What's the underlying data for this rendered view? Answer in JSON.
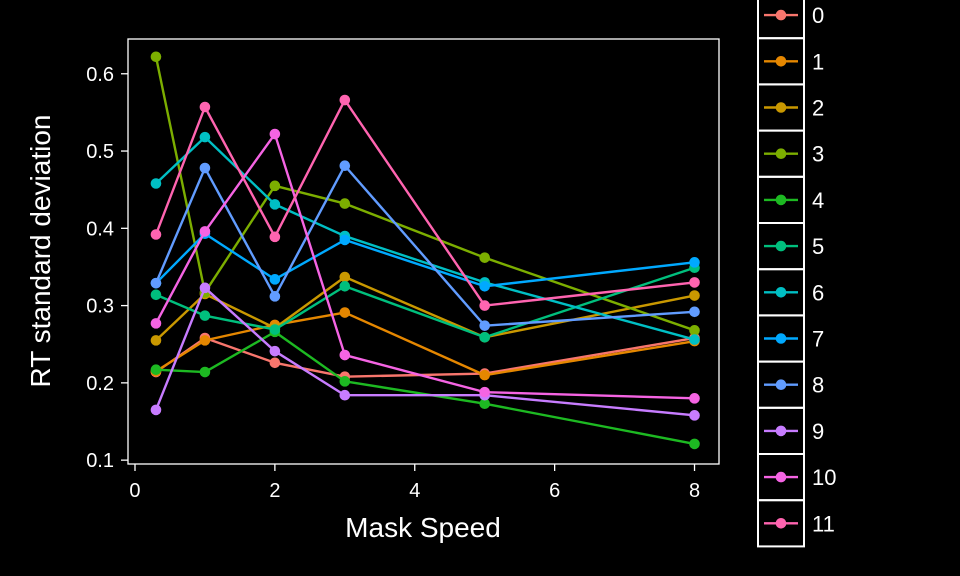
{
  "chart_data": {
    "type": "line",
    "xlabel": "Mask Speed",
    "ylabel": "RT standard deviation",
    "xlim": [
      -0.1,
      8.35
    ],
    "ylim": [
      0.095,
      0.645
    ],
    "xticks": [
      0,
      2,
      4,
      6,
      8
    ],
    "yticks": [
      0.1,
      0.2,
      0.3,
      0.4,
      0.5,
      0.6
    ],
    "x": [
      0.3,
      1,
      2,
      3,
      5,
      8
    ],
    "grid": false,
    "legend_position": "right",
    "series": [
      {
        "name": "0",
        "color": "#F8766D",
        "values": [
          0.214,
          0.258,
          0.226,
          0.208,
          0.212,
          0.258
        ]
      },
      {
        "name": "1",
        "color": "#E58700",
        "values": [
          0.215,
          0.255,
          0.275,
          0.291,
          0.21,
          0.254
        ]
      },
      {
        "name": "2",
        "color": "#C99800",
        "values": [
          0.255,
          0.315,
          0.271,
          0.337,
          0.259,
          0.313
        ]
      },
      {
        "name": "3",
        "color": "#7CAE00",
        "values": [
          0.622,
          0.317,
          0.455,
          0.432,
          0.362,
          0.268
        ]
      },
      {
        "name": "4",
        "color": "#1DB922",
        "values": [
          0.217,
          0.214,
          0.266,
          0.202,
          0.173,
          0.121
        ]
      },
      {
        "name": "5",
        "color": "#00BF7D",
        "values": [
          0.314,
          0.287,
          0.269,
          0.325,
          0.259,
          0.349
        ]
      },
      {
        "name": "6",
        "color": "#00BFC4",
        "values": [
          0.458,
          0.518,
          0.431,
          0.39,
          0.33,
          0.256
        ]
      },
      {
        "name": "7",
        "color": "#00A9FF",
        "values": [
          0.329,
          0.393,
          0.334,
          0.385,
          0.325,
          0.356
        ]
      },
      {
        "name": "8",
        "color": "#619CFF",
        "values": [
          0.329,
          0.478,
          0.312,
          0.481,
          0.274,
          0.292
        ]
      },
      {
        "name": "9",
        "color": "#C77CFF",
        "values": [
          0.165,
          0.323,
          0.241,
          0.184,
          0.184,
          0.158
        ]
      },
      {
        "name": "10",
        "color": "#F564E3",
        "values": [
          0.277,
          0.396,
          0.522,
          0.236,
          0.188,
          0.18
        ]
      },
      {
        "name": "11",
        "color": "#FF64B0",
        "values": [
          0.392,
          0.557,
          0.389,
          0.566,
          0.3,
          0.33
        ]
      }
    ]
  }
}
